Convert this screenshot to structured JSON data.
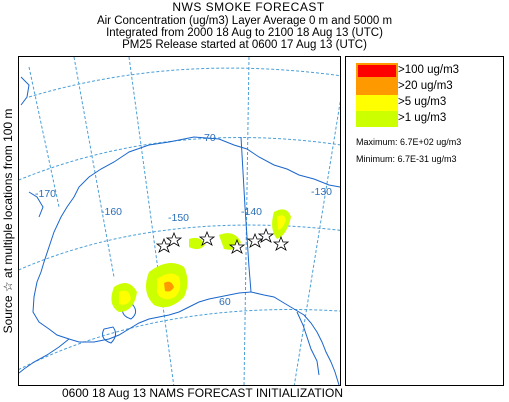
{
  "header": {
    "title": "NWS SMOKE FORECAST",
    "line1": "Air Concentration (ug/m3) Layer Average    0 m and  5000 m",
    "line2": "Integrated from 2000 18 Aug to 2100 18 Aug 13 (UTC)",
    "line3": "PM25 Release started at 0600 17 Aug 13 (UTC)"
  },
  "side_label": "Source ☆  at multiple locations   from  100 m",
  "footer": "0600 18 Aug 13 NAMS FORECAST INITIALIZATION",
  "legend": {
    "items": [
      {
        "label": ">100 ug/m3",
        "color": "#ff0000",
        "border": "#ff9900"
      },
      {
        "label": ">20 ug/m3",
        "color": "#ff9900",
        "border": "#ff9900"
      },
      {
        "label": ">5 ug/m3",
        "color": "#ffff00",
        "border": "#ffff00"
      },
      {
        "label": ">1 ug/m3",
        "color": "#ccff00",
        "border": "#ccff00"
      }
    ],
    "maximum": "Maximum: 6.7E+02 ug/m3",
    "minimum": "Minimum: 6.7E-31 ug/m3"
  },
  "map": {
    "graticule_labels": {
      "lon_170": "-170",
      "lon_160": "-160",
      "lon_150": "-150",
      "lon_140": "-140",
      "lon_130": "-130",
      "lat_70": "70",
      "lat_60": "60"
    },
    "colors": {
      "coast": "#1a66cc",
      "graticule": "#4a9fd8",
      "border": "#1a66cc",
      "source_star": "#000000"
    }
  }
}
